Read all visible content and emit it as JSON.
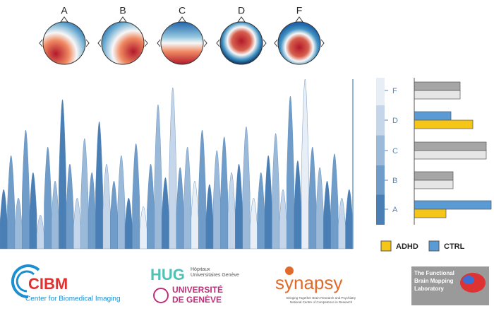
{
  "topomaps": [
    {
      "label": "A"
    },
    {
      "label": "B"
    },
    {
      "label": "C"
    },
    {
      "label": "D"
    },
    {
      "label": "F"
    }
  ],
  "chart_data": [
    {
      "type": "area",
      "states": [
        "A",
        "B",
        "C",
        "B",
        "A",
        "D",
        "B",
        "C",
        "A",
        "B",
        "D",
        "C",
        "B",
        "A",
        "D",
        "B",
        "C",
        "A",
        "B",
        "F",
        "B",
        "C",
        "A",
        "D",
        "B",
        "C",
        "F",
        "B",
        "A",
        "C",
        "B",
        "D",
        "A",
        "C",
        "F",
        "B",
        "A",
        "C",
        "D",
        "B",
        "A",
        "F",
        "B",
        "C",
        "A",
        "B",
        "D",
        "A"
      ],
      "values": [
        35,
        55,
        30,
        70,
        45,
        20,
        60,
        40,
        88,
        50,
        30,
        65,
        45,
        75,
        50,
        40,
        55,
        30,
        62,
        25,
        50,
        85,
        42,
        95,
        48,
        60,
        40,
        70,
        38,
        58,
        66,
        45,
        50,
        72,
        30,
        45,
        55,
        68,
        35,
        90,
        52,
        100,
        60,
        48,
        40,
        56,
        30,
        35
      ]
    },
    {
      "type": "bar",
      "orientation": "horizontal",
      "categories": [
        "F",
        "D",
        "C",
        "B",
        "A"
      ],
      "category_colors": [
        "#e8eef6",
        "#c5d6ea",
        "#9bbad9",
        "#6f9cc8",
        "#4a7fb5"
      ],
      "significant": [
        false,
        true,
        false,
        false,
        true
      ],
      "series": [
        {
          "name": "CTRL",
          "color": "#5b9bd5",
          "muted_color": "#a6a6a6",
          "values": [
            65,
            52,
            102,
            55,
            109
          ]
        },
        {
          "name": "ADHD",
          "color": "#f5c518",
          "muted_color": "#e6e6e6",
          "values": [
            65,
            83,
            102,
            55,
            45
          ]
        }
      ]
    }
  ],
  "logos": {
    "cibm": {
      "name": "CIBM",
      "subtitle": "Center for Biomedical Imaging"
    },
    "hug": {
      "name": "HUG",
      "subtitle": "Hôpitaux Universitaires Genève"
    },
    "unige": {
      "line1": "UNIVERSITÉ",
      "line2": "DE GENÈVE"
    },
    "synapsy": {
      "name": "synapsy",
      "line1": "Bringing Together Brain Research and Psychiatry",
      "line2": "National Centre of Competence in Research"
    },
    "fbml": {
      "line1": "The Functional",
      "line2": "Brain Mapping",
      "line3": "Laboratory"
    }
  }
}
